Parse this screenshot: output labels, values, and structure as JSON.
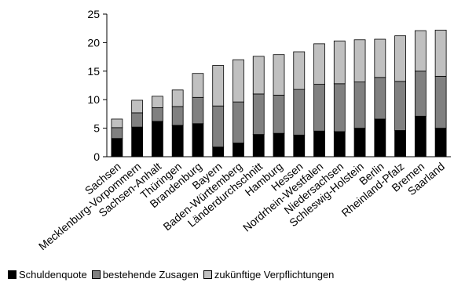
{
  "chart_data": {
    "type": "bar",
    "stacked": true,
    "categories": [
      "Sachsen",
      "Mecklenburg-Vorpommern",
      "Sachsen-Anhalt",
      "Thüringen",
      "Brandenburg",
      "Bayern",
      "Baden-Württemberg",
      "Länderdurchschnitt",
      "Hamburg",
      "Hessen",
      "Nordrhein-Westfalen",
      "Niedersachsen",
      "Schleswig-Holstein",
      "Berlin",
      "Rheinland-Pfalz",
      "Bremen",
      "Saarland"
    ],
    "series": [
      {
        "name": "Schuldenquote",
        "color": "#000000",
        "values": [
          3.2,
          5.2,
          6.2,
          5.5,
          5.8,
          1.7,
          2.4,
          3.9,
          4.1,
          3.8,
          4.5,
          4.4,
          5.0,
          6.6,
          4.6,
          7.1,
          5.0
        ]
      },
      {
        "name": "bestehende Zusagen",
        "color": "#808080",
        "values": [
          1.9,
          2.5,
          2.4,
          3.3,
          4.6,
          7.2,
          7.2,
          7.1,
          6.7,
          8.0,
          8.2,
          8.4,
          8.1,
          7.3,
          8.6,
          7.9,
          9.1
        ]
      },
      {
        "name": "zukünftige Verpflichtungen",
        "color": "#c0c0c0",
        "values": [
          1.5,
          2.2,
          2.0,
          2.9,
          4.2,
          7.1,
          7.4,
          6.6,
          7.1,
          6.6,
          7.1,
          7.5,
          7.4,
          6.7,
          8.0,
          7.1,
          8.1
        ]
      }
    ],
    "ylim": [
      0,
      25
    ],
    "yticks": [
      "0",
      "5",
      "10",
      "15",
      "20",
      "25"
    ],
    "xlabel": "",
    "ylabel": "",
    "title": "",
    "grid": false,
    "legend_position": "bottom"
  }
}
